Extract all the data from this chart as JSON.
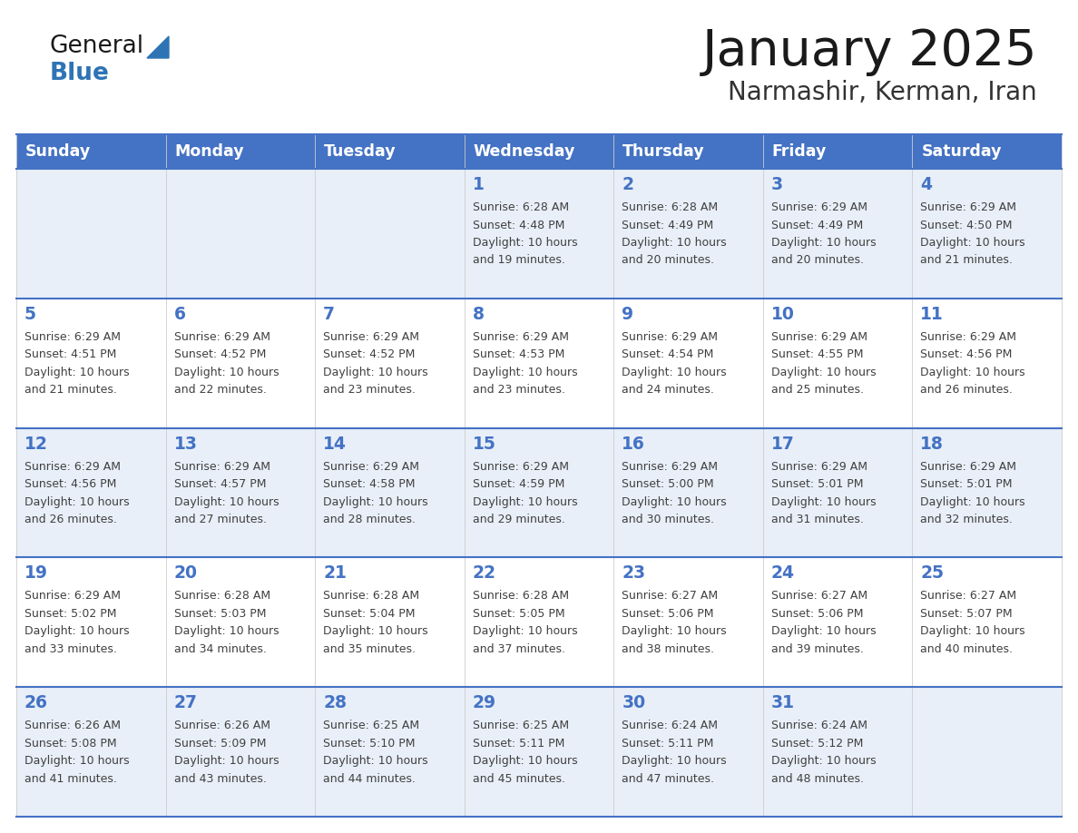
{
  "title": "January 2025",
  "subtitle": "Narmashir, Kerman, Iran",
  "days_of_week": [
    "Sunday",
    "Monday",
    "Tuesday",
    "Wednesday",
    "Thursday",
    "Friday",
    "Saturday"
  ],
  "header_bg": "#4472C4",
  "header_text": "#FFFFFF",
  "row_odd_bg": "#E8EFF8",
  "row_even_bg": "#FFFFFF",
  "day_num_color": "#4472C4",
  "text_color": "#404040",
  "line_color": "#4472C4",
  "calendar_data": [
    [
      {
        "day": null,
        "sunrise": null,
        "sunset": null,
        "daylight": null
      },
      {
        "day": null,
        "sunrise": null,
        "sunset": null,
        "daylight": null
      },
      {
        "day": null,
        "sunrise": null,
        "sunset": null,
        "daylight": null
      },
      {
        "day": 1,
        "sunrise": "6:28 AM",
        "sunset": "4:48 PM",
        "daylight": "10 hours and 19 minutes."
      },
      {
        "day": 2,
        "sunrise": "6:28 AM",
        "sunset": "4:49 PM",
        "daylight": "10 hours and 20 minutes."
      },
      {
        "day": 3,
        "sunrise": "6:29 AM",
        "sunset": "4:49 PM",
        "daylight": "10 hours and 20 minutes."
      },
      {
        "day": 4,
        "sunrise": "6:29 AM",
        "sunset": "4:50 PM",
        "daylight": "10 hours and 21 minutes."
      }
    ],
    [
      {
        "day": 5,
        "sunrise": "6:29 AM",
        "sunset": "4:51 PM",
        "daylight": "10 hours and 21 minutes."
      },
      {
        "day": 6,
        "sunrise": "6:29 AM",
        "sunset": "4:52 PM",
        "daylight": "10 hours and 22 minutes."
      },
      {
        "day": 7,
        "sunrise": "6:29 AM",
        "sunset": "4:52 PM",
        "daylight": "10 hours and 23 minutes."
      },
      {
        "day": 8,
        "sunrise": "6:29 AM",
        "sunset": "4:53 PM",
        "daylight": "10 hours and 23 minutes."
      },
      {
        "day": 9,
        "sunrise": "6:29 AM",
        "sunset": "4:54 PM",
        "daylight": "10 hours and 24 minutes."
      },
      {
        "day": 10,
        "sunrise": "6:29 AM",
        "sunset": "4:55 PM",
        "daylight": "10 hours and 25 minutes."
      },
      {
        "day": 11,
        "sunrise": "6:29 AM",
        "sunset": "4:56 PM",
        "daylight": "10 hours and 26 minutes."
      }
    ],
    [
      {
        "day": 12,
        "sunrise": "6:29 AM",
        "sunset": "4:56 PM",
        "daylight": "10 hours and 26 minutes."
      },
      {
        "day": 13,
        "sunrise": "6:29 AM",
        "sunset": "4:57 PM",
        "daylight": "10 hours and 27 minutes."
      },
      {
        "day": 14,
        "sunrise": "6:29 AM",
        "sunset": "4:58 PM",
        "daylight": "10 hours and 28 minutes."
      },
      {
        "day": 15,
        "sunrise": "6:29 AM",
        "sunset": "4:59 PM",
        "daylight": "10 hours and 29 minutes."
      },
      {
        "day": 16,
        "sunrise": "6:29 AM",
        "sunset": "5:00 PM",
        "daylight": "10 hours and 30 minutes."
      },
      {
        "day": 17,
        "sunrise": "6:29 AM",
        "sunset": "5:01 PM",
        "daylight": "10 hours and 31 minutes."
      },
      {
        "day": 18,
        "sunrise": "6:29 AM",
        "sunset": "5:01 PM",
        "daylight": "10 hours and 32 minutes."
      }
    ],
    [
      {
        "day": 19,
        "sunrise": "6:29 AM",
        "sunset": "5:02 PM",
        "daylight": "10 hours and 33 minutes."
      },
      {
        "day": 20,
        "sunrise": "6:28 AM",
        "sunset": "5:03 PM",
        "daylight": "10 hours and 34 minutes."
      },
      {
        "day": 21,
        "sunrise": "6:28 AM",
        "sunset": "5:04 PM",
        "daylight": "10 hours and 35 minutes."
      },
      {
        "day": 22,
        "sunrise": "6:28 AM",
        "sunset": "5:05 PM",
        "daylight": "10 hours and 37 minutes."
      },
      {
        "day": 23,
        "sunrise": "6:27 AM",
        "sunset": "5:06 PM",
        "daylight": "10 hours and 38 minutes."
      },
      {
        "day": 24,
        "sunrise": "6:27 AM",
        "sunset": "5:06 PM",
        "daylight": "10 hours and 39 minutes."
      },
      {
        "day": 25,
        "sunrise": "6:27 AM",
        "sunset": "5:07 PM",
        "daylight": "10 hours and 40 minutes."
      }
    ],
    [
      {
        "day": 26,
        "sunrise": "6:26 AM",
        "sunset": "5:08 PM",
        "daylight": "10 hours and 41 minutes."
      },
      {
        "day": 27,
        "sunrise": "6:26 AM",
        "sunset": "5:09 PM",
        "daylight": "10 hours and 43 minutes."
      },
      {
        "day": 28,
        "sunrise": "6:25 AM",
        "sunset": "5:10 PM",
        "daylight": "10 hours and 44 minutes."
      },
      {
        "day": 29,
        "sunrise": "6:25 AM",
        "sunset": "5:11 PM",
        "daylight": "10 hours and 45 minutes."
      },
      {
        "day": 30,
        "sunrise": "6:24 AM",
        "sunset": "5:11 PM",
        "daylight": "10 hours and 47 minutes."
      },
      {
        "day": 31,
        "sunrise": "6:24 AM",
        "sunset": "5:12 PM",
        "daylight": "10 hours and 48 minutes."
      },
      {
        "day": null,
        "sunrise": null,
        "sunset": null,
        "daylight": null
      }
    ]
  ],
  "logo_general_color": "#1a1a1a",
  "logo_blue_color": "#2E74B5",
  "logo_triangle_color": "#2E74B5",
  "title_color": "#1a1a1a",
  "subtitle_color": "#333333"
}
